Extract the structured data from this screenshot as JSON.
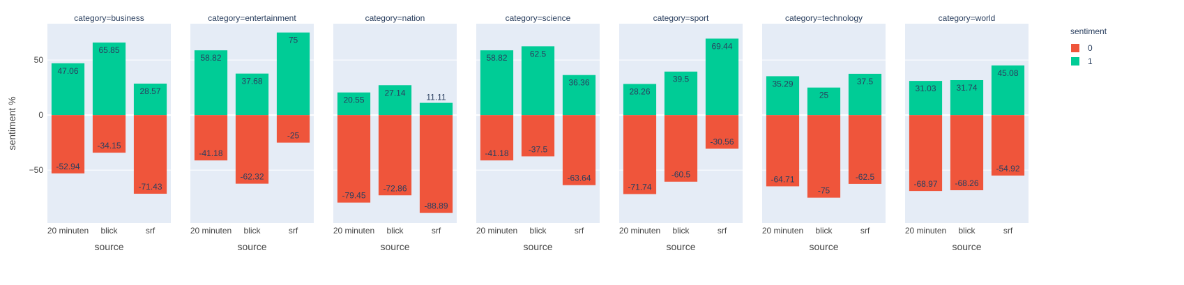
{
  "chart_data": {
    "type": "bar",
    "ylabel": "sentiment %",
    "xlabel": "source",
    "yticks": [
      -50,
      0,
      50
    ],
    "ylim": [
      -98,
      83
    ],
    "categories": [
      "20 minuten",
      "blick",
      "srf"
    ],
    "legend": {
      "title": "sentiment",
      "placement": "top-right",
      "items": [
        {
          "name": "0",
          "color": "#EF553B"
        },
        {
          "name": "1",
          "color": "#00CC96"
        }
      ]
    },
    "facets": [
      {
        "title": "category=business",
        "positive": [
          47.06,
          65.85,
          28.57
        ],
        "negative": [
          -52.94,
          -34.15,
          -71.43
        ]
      },
      {
        "title": "category=entertainment",
        "positive": [
          58.82,
          37.68,
          75
        ],
        "negative": [
          -41.18,
          -62.32,
          -25
        ]
      },
      {
        "title": "category=nation",
        "positive": [
          20.55,
          27.14,
          11.11
        ],
        "negative": [
          -79.45,
          -72.86,
          -88.89
        ]
      },
      {
        "title": "category=science",
        "positive": [
          58.82,
          62.5,
          36.36
        ],
        "negative": [
          -41.18,
          -37.5,
          -63.64
        ]
      },
      {
        "title": "category=sport",
        "positive": [
          28.26,
          39.5,
          69.44
        ],
        "negative": [
          -71.74,
          -60.5,
          -30.56
        ]
      },
      {
        "title": "category=technology",
        "positive": [
          35.29,
          25,
          37.5
        ],
        "negative": [
          -64.71,
          -75,
          -62.5
        ]
      },
      {
        "title": "category=world",
        "positive": [
          31.03,
          31.74,
          45.08
        ],
        "negative": [
          -68.97,
          -68.26,
          -54.92
        ]
      }
    ]
  }
}
